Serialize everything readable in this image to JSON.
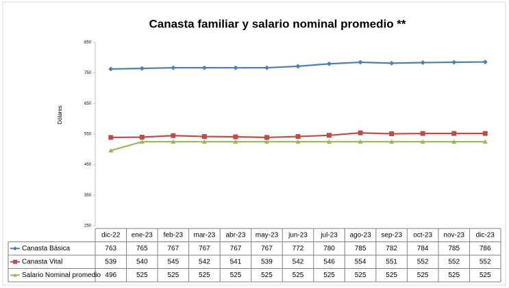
{
  "chart_data": {
    "type": "line",
    "title": "Canasta familiar y salario nominal promedio **",
    "y_label": "Dólares",
    "categories": [
      "dic-22",
      "ene-23",
      "feb-23",
      "mar-23",
      "abr-23",
      "may-23",
      "jun-23",
      "jul-23",
      "ago-23",
      "sep-23",
      "oct-23",
      "nov-23",
      "dic-23"
    ],
    "series": [
      {
        "name": "Canasta Básica",
        "color": "#4a7ebb",
        "marker": "diamond",
        "values": [
          763,
          765,
          767,
          767,
          767,
          767,
          772,
          780,
          785,
          782,
          784,
          785,
          786
        ]
      },
      {
        "name": "Canasta Vital",
        "color": "#be4b48",
        "marker": "square",
        "values": [
          539,
          540,
          545,
          542,
          541,
          539,
          542,
          546,
          554,
          551,
          552,
          552,
          552
        ]
      },
      {
        "name": "Salario Nominal promedio",
        "color": "#98b954",
        "marker": "triangle",
        "values": [
          496,
          525,
          525,
          525,
          525,
          525,
          525,
          525,
          525,
          525,
          525,
          525,
          525
        ]
      }
    ],
    "ylim": [
      250,
      850
    ],
    "yticks": [
      250,
      350,
      450,
      550,
      650,
      750,
      850
    ],
    "grid": false,
    "data_table": true
  }
}
